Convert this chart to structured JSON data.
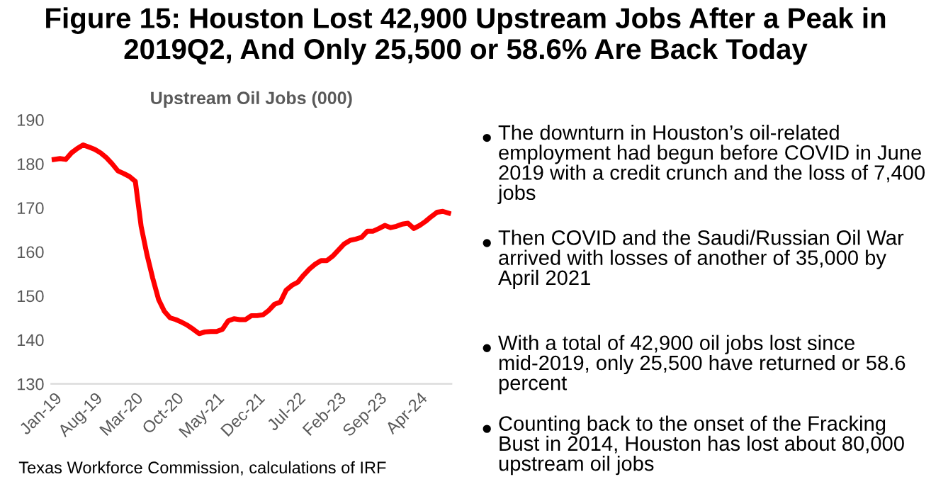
{
  "chart_data": {
    "type": "line",
    "title": "Figure 15: Houston Lost 42,900 Upstream Jobs After a Peak in 2019Q2, And Only 25,500 or 58.6% Are Back Today",
    "subtitle": "Upstream Oil Jobs (000)",
    "categories": [
      "Jan-19",
      null,
      null,
      null,
      null,
      null,
      null,
      "Aug-19",
      null,
      null,
      null,
      null,
      null,
      null,
      "Mar-20",
      null,
      null,
      null,
      null,
      null,
      null,
      "Oct-20",
      null,
      null,
      null,
      null,
      null,
      null,
      "May-21",
      null,
      null,
      null,
      null,
      null,
      null,
      "Dec-21",
      null,
      null,
      null,
      null,
      null,
      null,
      "Jul-22",
      null,
      null,
      null,
      null,
      null,
      null,
      "Feb-23",
      null,
      null,
      null,
      null,
      null,
      null,
      "Sep-23",
      null,
      null,
      null,
      null,
      null,
      null,
      "Apr-24",
      null,
      null,
      null,
      null,
      null
    ],
    "series": [
      {
        "color": "#ff0000",
        "values": [
          181,
          181.2,
          181,
          182.5,
          183.5,
          184.3,
          183.8,
          183.3,
          182.5,
          181.4,
          180,
          178.4,
          177.8,
          177.1,
          176,
          165.8,
          159.4,
          154,
          149.2,
          146.5,
          145,
          144.6,
          144,
          143.3,
          142.4,
          141.4,
          141.8,
          141.9,
          141.9,
          142.4,
          144.3,
          144.8,
          144.6,
          144.6,
          145.5,
          145.5,
          145.7,
          146.7,
          148.1,
          148.6,
          151.3,
          152.4,
          153.1,
          154.7,
          156.1,
          157.2,
          158,
          158,
          159,
          160.4,
          161.8,
          162.6,
          162.9,
          163.3,
          164.7,
          164.7,
          165.3,
          166,
          165.5,
          165.8,
          166.3,
          166.5,
          165.3,
          166,
          166.9,
          168,
          169,
          169.2,
          168.8
        ]
      }
    ],
    "ylim": [
      130,
      190
    ],
    "yticks": [
      130,
      140,
      150,
      160,
      170,
      180,
      190
    ],
    "grid": false,
    "legend": false,
    "marker": "none",
    "line_style": "solid",
    "annotations": [
      "The downturn in Houston’s oil-related employment had begun before COVID in June 2019 with a credit crunch and the loss of 7,400 jobs",
      "Then COVID and the Saudi/Russian Oil War arrived with losses of another of 35,000 by April 2021",
      "With a total of 42,900 oil jobs lost since mid-2019, only 25,500 have returned or 58.6 percent",
      "Counting back to the onset of the Fracking Bust in 2014, Houston has lost about 80,000 upstream oil jobs",
      "Texas Workforce Commission, calculations of IRF"
    ]
  }
}
